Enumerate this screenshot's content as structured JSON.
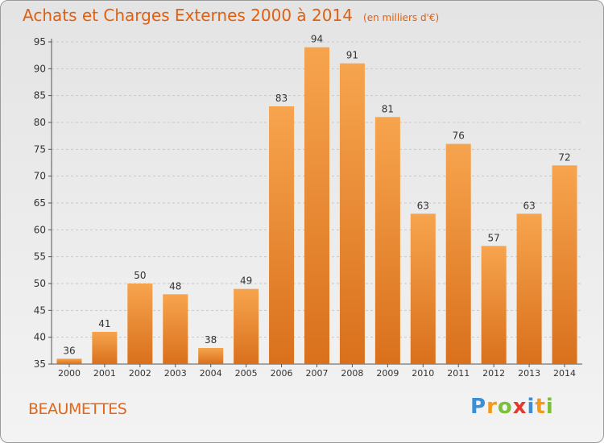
{
  "chart_data": {
    "type": "bar",
    "title": "Achats et Charges Externes 2000 à 2014",
    "unit_label": "(en milliers d'€)",
    "categories": [
      "2000",
      "2001",
      "2002",
      "2003",
      "2004",
      "2005",
      "2006",
      "2007",
      "2008",
      "2009",
      "2010",
      "2011",
      "2012",
      "2013",
      "2014"
    ],
    "values": [
      36,
      41,
      50,
      48,
      38,
      49,
      83,
      94,
      91,
      81,
      63,
      76,
      57,
      63,
      72
    ],
    "ylim": [
      35,
      95
    ],
    "yticks": [
      35,
      40,
      45,
      50,
      55,
      60,
      65,
      70,
      75,
      80,
      85,
      90,
      95
    ],
    "grid": true,
    "bar_color_light": "#f7a44e",
    "bar_color_dark": "#d9701c"
  },
  "commune_name": "BEAUMETTES",
  "logo": {
    "text": "Proxiti",
    "letters": [
      "P",
      "r",
      "o",
      "x",
      "i",
      "t",
      "i"
    ],
    "colors": [
      "#3b8fd6",
      "#f39a1b",
      "#7cbf3a",
      "#e23a2e",
      "#3b8fd6",
      "#f39a1b",
      "#7cbf3a"
    ]
  }
}
